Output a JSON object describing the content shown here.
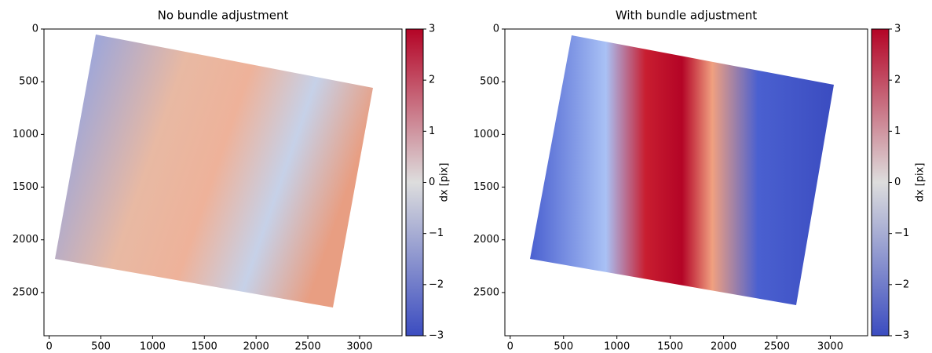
{
  "chart_data": [
    {
      "type": "image",
      "title": "No bundle adjustment",
      "xlim": [
        -50,
        3410
      ],
      "ylim": [
        2910,
        0
      ],
      "xticks": [
        0,
        500,
        1000,
        1500,
        2000,
        2500,
        3000
      ],
      "yticks": [
        0,
        500,
        1000,
        1500,
        2000,
        2500
      ],
      "colorbar": {
        "label": "dx [pix]",
        "clim": [
          -3,
          3
        ],
        "colors": [
          "#3b4cc0",
          "#dddddd",
          "#b40426"
        ],
        "ticks": [
          {
            "value": -3,
            "label": "−3"
          },
          {
            "value": -2,
            "label": "−2"
          },
          {
            "value": -1,
            "label": "−1"
          },
          0,
          1,
          2,
          3
        ]
      }
    },
    {
      "type": "image",
      "title": "With bundle adjustment",
      "xlim": [
        -50,
        3350
      ],
      "ylim": [
        2910,
        0
      ],
      "xticks": [
        0,
        500,
        1000,
        1500,
        2000,
        2500,
        3000
      ],
      "yticks": [
        0,
        500,
        1000,
        1500,
        2000,
        2500
      ],
      "colorbar": {
        "label": "dx [pix]",
        "clim": [
          -3,
          3
        ],
        "colors": [
          "#3b4cc0",
          "#dddddd",
          "#b40426"
        ],
        "ticks": [
          {
            "value": -3,
            "label": "−3"
          },
          {
            "value": -2,
            "label": "−2"
          },
          {
            "value": -1,
            "label": "−1"
          },
          0,
          1,
          2,
          3
        ]
      }
    }
  ]
}
